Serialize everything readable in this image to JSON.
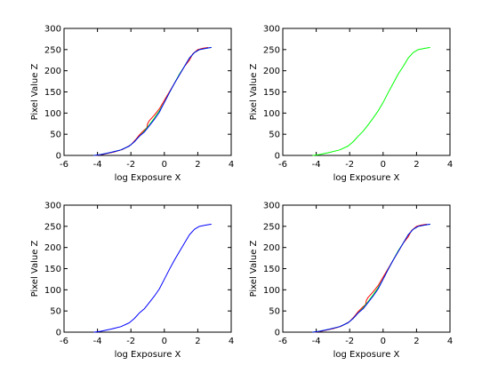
{
  "chart_data": [
    {
      "type": "line",
      "xlabel": "log Exposure X",
      "ylabel": "Pixel Value Z",
      "xlim": [
        -6,
        4
      ],
      "ylim": [
        0,
        300
      ],
      "xticks": [
        -6,
        -4,
        -2,
        0,
        2,
        4
      ],
      "yticks": [
        0,
        50,
        100,
        150,
        200,
        250,
        300
      ],
      "grid": false,
      "series": [
        {
          "color": "#ff0000",
          "x": [
            -4.1,
            -3.6,
            -3.0,
            -2.5,
            -2.0,
            -1.7,
            -1.5,
            -1.2,
            -1.05,
            -1.0,
            -0.9,
            -0.6,
            -0.3,
            0.0,
            0.3,
            0.6,
            0.9,
            1.2,
            1.5,
            1.7,
            2.0,
            2.3,
            2.6
          ],
          "y": [
            0,
            3,
            8,
            14,
            25,
            38,
            48,
            60,
            65,
            75,
            82,
            95,
            110,
            130,
            150,
            170,
            190,
            210,
            225,
            240,
            250,
            253,
            255
          ]
        },
        {
          "color": "#00ff00",
          "x": [
            -4.2,
            -3.8,
            -3.2,
            -2.6,
            -2.1,
            -1.8,
            -1.5,
            -1.2,
            -0.9,
            -0.6,
            -0.3,
            0.0,
            0.3,
            0.6,
            0.9,
            1.2,
            1.5,
            1.8,
            2.1,
            2.5,
            2.8
          ],
          "y": [
            0,
            2,
            7,
            13,
            22,
            32,
            45,
            57,
            72,
            88,
            105,
            125,
            148,
            170,
            192,
            210,
            230,
            243,
            250,
            253,
            255
          ]
        },
        {
          "color": "#0000ff",
          "x": [
            -4.2,
            -3.8,
            -3.2,
            -2.6,
            -2.1,
            -1.8,
            -1.5,
            -1.2,
            -0.9,
            -0.6,
            -0.3,
            0.0,
            0.3,
            0.6,
            0.9,
            1.2,
            1.5,
            1.8,
            2.1,
            2.5,
            2.8
          ],
          "y": [
            0,
            2,
            7,
            13,
            22,
            32,
            45,
            55,
            70,
            85,
            102,
            125,
            148,
            170,
            190,
            210,
            230,
            243,
            250,
            253,
            255
          ]
        }
      ]
    },
    {
      "type": "line",
      "xlabel": "log Exposure X",
      "ylabel": "Pixel Value Z",
      "xlim": [
        -6,
        4
      ],
      "ylim": [
        0,
        300
      ],
      "xticks": [
        -6,
        -4,
        -2,
        0,
        2,
        4
      ],
      "yticks": [
        0,
        50,
        100,
        150,
        200,
        250,
        300
      ],
      "grid": false,
      "series": [
        {
          "color": "#00ff00",
          "x": [
            -4.2,
            -3.8,
            -3.2,
            -2.6,
            -2.1,
            -1.8,
            -1.5,
            -1.2,
            -0.9,
            -0.6,
            -0.3,
            0.0,
            0.3,
            0.6,
            0.9,
            1.2,
            1.5,
            1.8,
            2.1,
            2.5,
            2.8
          ],
          "y": [
            0,
            2,
            7,
            13,
            22,
            32,
            45,
            57,
            72,
            88,
            105,
            125,
            148,
            170,
            192,
            210,
            230,
            243,
            250,
            253,
            255
          ]
        }
      ]
    },
    {
      "type": "line",
      "xlabel": "log Exposure X",
      "ylabel": "Pixel Value Z",
      "xlim": [
        -6,
        4
      ],
      "ylim": [
        0,
        300
      ],
      "xticks": [
        -6,
        -4,
        -2,
        0,
        2,
        4
      ],
      "yticks": [
        0,
        50,
        100,
        150,
        200,
        250,
        300
      ],
      "grid": false,
      "series": [
        {
          "color": "#0000ff",
          "x": [
            -4.2,
            -3.8,
            -3.2,
            -2.6,
            -2.1,
            -1.8,
            -1.5,
            -1.2,
            -0.9,
            -0.6,
            -0.3,
            0.0,
            0.3,
            0.6,
            0.9,
            1.2,
            1.5,
            1.8,
            2.1,
            2.5,
            2.8
          ],
          "y": [
            0,
            2,
            7,
            13,
            22,
            32,
            45,
            55,
            70,
            85,
            102,
            125,
            148,
            170,
            190,
            210,
            230,
            243,
            250,
            253,
            255
          ]
        }
      ]
    },
    {
      "type": "line",
      "xlabel": "log Exposure X",
      "ylabel": "Pixel Value Z",
      "xlim": [
        -6,
        4
      ],
      "ylim": [
        0,
        300
      ],
      "xticks": [
        -6,
        -4,
        -2,
        0,
        2,
        4
      ],
      "yticks": [
        0,
        50,
        100,
        150,
        200,
        250,
        300
      ],
      "grid": false,
      "series": [
        {
          "color": "#ff0000",
          "x": [
            -4.1,
            -3.6,
            -3.0,
            -2.5,
            -2.0,
            -1.7,
            -1.5,
            -1.2,
            -1.05,
            -1.0,
            -0.9,
            -0.6,
            -0.3,
            0.0,
            0.3,
            0.6,
            0.9,
            1.2,
            1.5,
            1.7,
            2.0,
            2.3,
            2.6
          ],
          "y": [
            0,
            3,
            8,
            14,
            25,
            38,
            48,
            60,
            65,
            75,
            82,
            95,
            110,
            130,
            150,
            170,
            190,
            210,
            225,
            240,
            250,
            253,
            255
          ]
        },
        {
          "color": "#00ff00",
          "x": [
            -4.2,
            -3.8,
            -3.2,
            -2.6,
            -2.1,
            -1.8,
            -1.5,
            -1.2,
            -0.9,
            -0.6,
            -0.3,
            0.0,
            0.3,
            0.6,
            0.9,
            1.2,
            1.5,
            1.8,
            2.1,
            2.5,
            2.8
          ],
          "y": [
            0,
            2,
            7,
            13,
            22,
            32,
            45,
            57,
            72,
            88,
            105,
            125,
            148,
            170,
            192,
            210,
            230,
            243,
            250,
            253,
            255
          ]
        },
        {
          "color": "#0000ff",
          "x": [
            -4.2,
            -3.8,
            -3.2,
            -2.6,
            -2.1,
            -1.8,
            -1.5,
            -1.2,
            -0.9,
            -0.6,
            -0.3,
            0.0,
            0.3,
            0.6,
            0.9,
            1.2,
            1.5,
            1.8,
            2.1,
            2.5,
            2.8
          ],
          "y": [
            0,
            2,
            7,
            13,
            22,
            32,
            45,
            55,
            70,
            85,
            102,
            125,
            148,
            170,
            190,
            210,
            230,
            243,
            250,
            253,
            255
          ]
        }
      ]
    }
  ]
}
